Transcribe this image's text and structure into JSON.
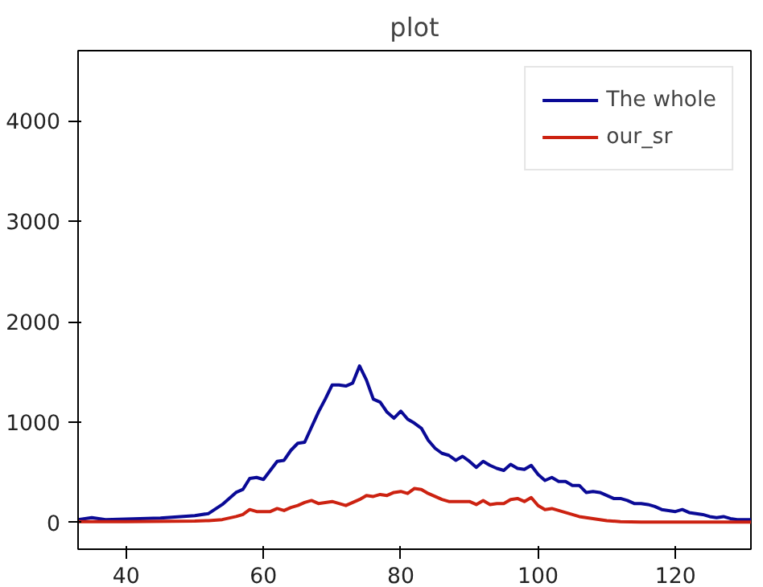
{
  "chart_data": {
    "type": "line",
    "title": "plot",
    "xlim": [
      33,
      131
    ],
    "ylim": [
      -265,
      4700
    ],
    "xticks": [
      40,
      60,
      80,
      100,
      120
    ],
    "yticks": [
      0,
      1000,
      2000,
      3000,
      4000
    ],
    "grid": false,
    "legend": "top right",
    "line_style": "solid",
    "marker": "none",
    "series": [
      {
        "name": "The whole",
        "color": "#0a0a96",
        "x": [
          33,
          35,
          37,
          40,
          45,
          50,
          52,
          54,
          56,
          57,
          58,
          59,
          60,
          61,
          62,
          63,
          64,
          65,
          66,
          67,
          68,
          69,
          70,
          71,
          72,
          73,
          74,
          75,
          76,
          77,
          78,
          79,
          80,
          81,
          82,
          83,
          84,
          85,
          86,
          87,
          88,
          89,
          90,
          91,
          92,
          93,
          94,
          95,
          96,
          97,
          98,
          99,
          100,
          101,
          102,
          103,
          104,
          105,
          106,
          107,
          108,
          109,
          110,
          111,
          112,
          113,
          114,
          115,
          116,
          117,
          118,
          119,
          120,
          121,
          122,
          123,
          124,
          125,
          126,
          127,
          128,
          129,
          130,
          131
        ],
        "values": [
          30,
          50,
          30,
          35,
          45,
          70,
          90,
          180,
          300,
          330,
          440,
          450,
          430,
          520,
          610,
          620,
          720,
          790,
          800,
          950,
          1100,
          1230,
          1370,
          1370,
          1360,
          1390,
          1560,
          1420,
          1230,
          1200,
          1100,
          1040,
          1110,
          1030,
          990,
          940,
          820,
          740,
          690,
          670,
          620,
          660,
          610,
          550,
          610,
          570,
          540,
          520,
          580,
          540,
          530,
          570,
          480,
          420,
          450,
          410,
          410,
          370,
          370,
          300,
          310,
          300,
          270,
          240,
          240,
          220,
          190,
          190,
          180,
          160,
          130,
          120,
          110,
          130,
          100,
          90,
          80,
          60,
          50,
          60,
          40,
          30,
          30,
          30
        ]
      },
      {
        "name": "our_sr",
        "color": "#cc2211",
        "x": [
          33,
          40,
          50,
          52,
          54,
          56,
          57,
          58,
          59,
          60,
          61,
          62,
          63,
          64,
          65,
          66,
          67,
          68,
          69,
          70,
          71,
          72,
          73,
          74,
          75,
          76,
          77,
          78,
          79,
          80,
          81,
          82,
          83,
          84,
          85,
          86,
          87,
          88,
          89,
          90,
          91,
          92,
          93,
          94,
          95,
          96,
          97,
          98,
          99,
          100,
          101,
          102,
          103,
          104,
          105,
          106,
          107,
          108,
          109,
          110,
          112,
          115,
          120,
          131
        ],
        "values": [
          10,
          10,
          15,
          20,
          30,
          60,
          80,
          130,
          110,
          110,
          110,
          140,
          120,
          150,
          170,
          200,
          220,
          190,
          200,
          210,
          190,
          170,
          200,
          230,
          270,
          260,
          280,
          270,
          300,
          310,
          290,
          340,
          330,
          290,
          260,
          230,
          210,
          210,
          210,
          210,
          180,
          220,
          180,
          190,
          190,
          230,
          240,
          210,
          250,
          170,
          130,
          140,
          120,
          100,
          80,
          60,
          50,
          40,
          30,
          20,
          10,
          5,
          5,
          5
        ]
      }
    ]
  }
}
